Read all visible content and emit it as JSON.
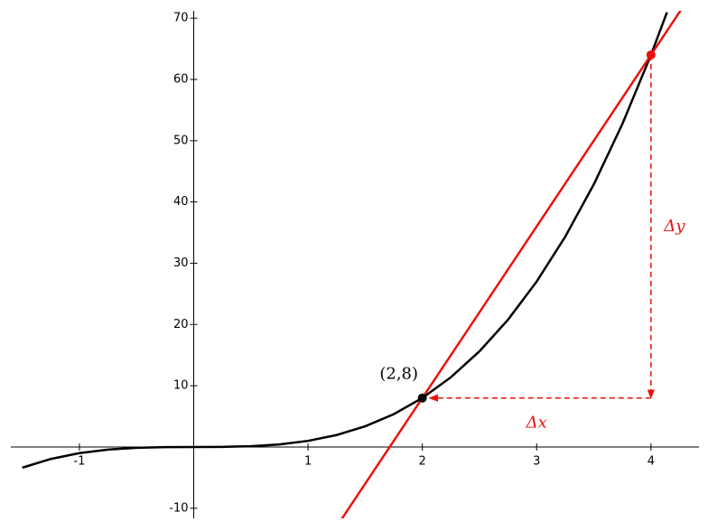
{
  "chart_data": {
    "type": "line",
    "xlim": [
      -1.6,
      4.42
    ],
    "ylim": [
      -11.65,
      71.2
    ],
    "xticks": [
      -1,
      1,
      2,
      3,
      4
    ],
    "yticks": [
      -10,
      10,
      20,
      30,
      40,
      50,
      60,
      70
    ],
    "series": [
      {
        "color": "#000000",
        "x": [
          -1.5,
          -1.25,
          -1,
          -0.75,
          -0.5,
          -0.25,
          0,
          0.25,
          0.5,
          0.75,
          1,
          1.25,
          1.5,
          1.75,
          2,
          2.25,
          2.5,
          2.75,
          3,
          3.25,
          3.5,
          3.75,
          4,
          4.14
        ],
        "values": [
          -3.375,
          -1.953,
          -1,
          -0.422,
          -0.125,
          -0.016,
          0,
          0.016,
          0.125,
          0.422,
          1,
          1.953,
          3.375,
          5.359,
          8,
          11.391,
          15.625,
          20.797,
          27,
          34.328,
          42.875,
          52.734,
          64,
          70.96
        ]
      },
      {
        "color": "#e8120e",
        "x": [
          1.29,
          4.26
        ],
        "values": [
          -11.88,
          71.28
        ]
      }
    ],
    "points": [
      {
        "x": 2,
        "y": 8,
        "color": "#000000",
        "label": "(2,8)"
      },
      {
        "x": 4,
        "y": 64,
        "color": "#e8120e"
      }
    ],
    "arrows": [
      {
        "from": [
          4,
          64
        ],
        "to": [
          4,
          8
        ],
        "label": "Δy",
        "color": "#e8120e"
      },
      {
        "from": [
          4,
          8
        ],
        "to": [
          2,
          8
        ],
        "label": "Δx",
        "color": "#e8120e"
      }
    ]
  }
}
